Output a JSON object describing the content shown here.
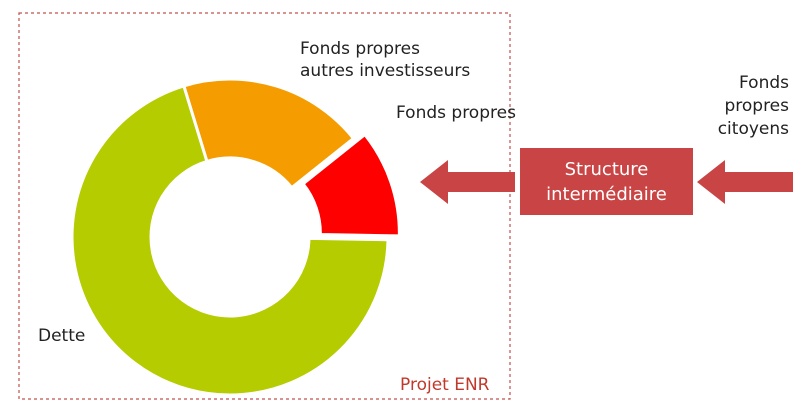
{
  "chart_data": {
    "type": "donut",
    "categories": [
      "Fonds propres\nautres investisseurs",
      "Fonds propres",
      "Dette"
    ],
    "values": [
      19,
      11,
      70
    ],
    "colors": [
      "#f59d00",
      "#ff0000",
      "#b4cc00"
    ],
    "exploded": [
      false,
      true,
      false
    ]
  },
  "frame": {
    "label": "Projet ENR"
  },
  "structure": {
    "label": "Structure\nintermédiaire"
  },
  "source": {
    "label": "Fonds\npropres\ncitoyens"
  }
}
